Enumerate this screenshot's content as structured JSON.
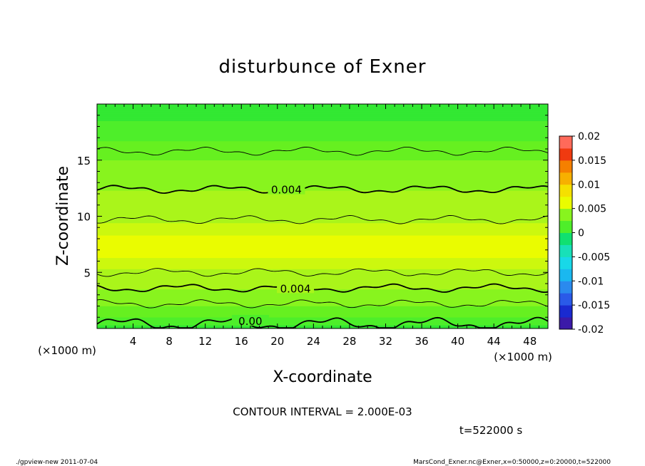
{
  "chart_data": {
    "type": "heatmap",
    "title": "disturbunce of Exner",
    "xlabel": "X-coordinate",
    "ylabel": "Z-coordinate",
    "x_unit": "(×1000 m)",
    "y_unit": "(×1000 m)",
    "xlim": [
      0,
      50
    ],
    "ylim": [
      0,
      20
    ],
    "x_ticks": [
      "4",
      "8",
      "12",
      "16",
      "20",
      "24",
      "28",
      "32",
      "36",
      "40",
      "44",
      "48"
    ],
    "y_ticks": [
      "5",
      "10",
      "15"
    ],
    "colorbar": {
      "ticks": [
        "0.02",
        "0.015",
        "0.01",
        "0.005",
        "0",
        "-0.005",
        "-0.01",
        "-0.015",
        "-0.02"
      ],
      "range": [
        -0.02,
        0.02
      ]
    },
    "field_profile": {
      "z": [
        0,
        0.5,
        1,
        2,
        3,
        4,
        5,
        6,
        7,
        8,
        9,
        10,
        11,
        12,
        13,
        14,
        15,
        16,
        17,
        18,
        19,
        20
      ],
      "value": [
        0.0,
        0.0015,
        0.002,
        0.003,
        0.0038,
        0.0042,
        0.0048,
        0.0054,
        0.0058,
        0.0056,
        0.0052,
        0.0047,
        0.0044,
        0.0041,
        0.0038,
        0.0034,
        0.003,
        0.0024,
        0.0018,
        0.0012,
        0.0008,
        0.0006
      ]
    },
    "contours": [
      {
        "level": 0.0,
        "label": "0.00",
        "z_approx": 0.4
      },
      {
        "level": 0.002,
        "label": "",
        "z_approx": 2.2
      },
      {
        "level": 0.004,
        "label": "0.004",
        "z_approx": 3.6
      },
      {
        "level": 0.004,
        "label": "",
        "z_approx": 5.0
      },
      {
        "level": 0.006,
        "label": "",
        "z_approx": 9.7
      },
      {
        "level": 0.004,
        "label": "0.004",
        "z_approx": 12.4
      },
      {
        "level": 0.002,
        "label": "",
        "z_approx": 15.8
      }
    ],
    "contour_interval": "CONTOUR INTERVAL = 2.000E-03",
    "time_label": "t=522000 s"
  },
  "footer": {
    "left": "./gpview-new   2011-07-04",
    "right": "MarsCond_Exner.nc@Exner,x=0:50000,z=0:20000,t=522000"
  }
}
